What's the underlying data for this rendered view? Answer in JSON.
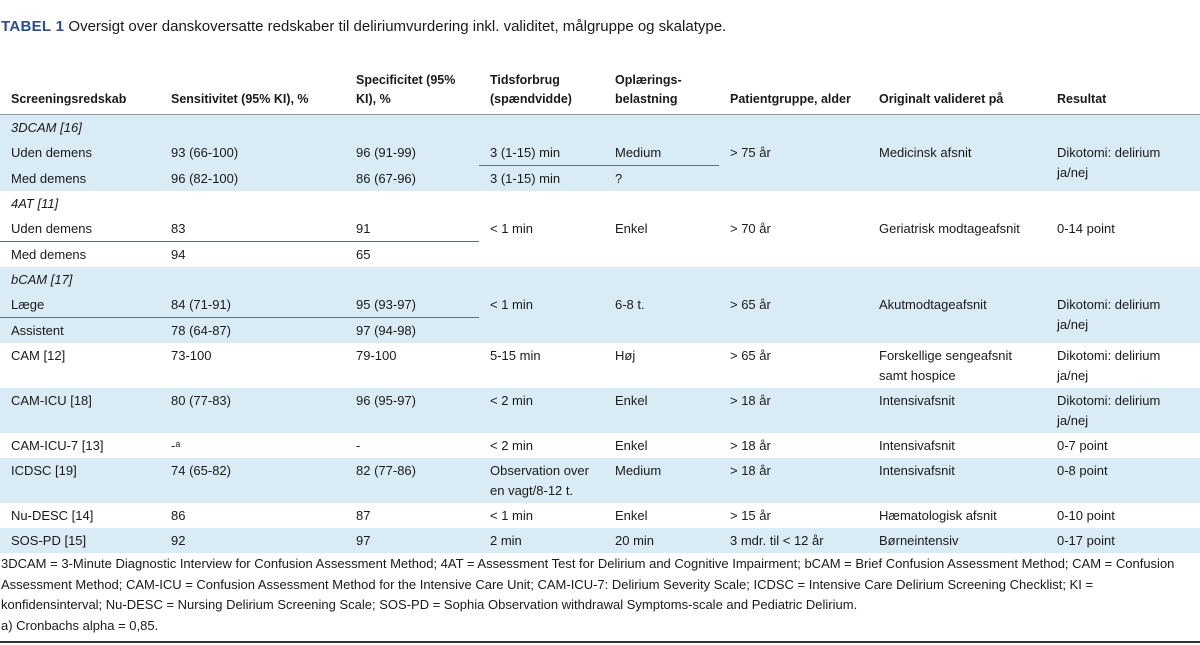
{
  "title": {
    "label": "TABEL 1",
    "text": "Oversigt over danskoversatte redskaber til deliriumvurdering inkl. validitet, målgruppe og skalatype."
  },
  "headers": [
    "Screeningsredskab",
    "Sensitivitet (95% KI), %",
    "Specificitet (95% KI), %",
    "Tidsforbrug (spændvidde)",
    "Oplærings-belastning",
    "Patientgruppe, alder",
    "Originalt valideret på",
    "Resultat"
  ],
  "groups": {
    "g3dcam": {
      "name": "3DCAM [16]",
      "sub": [
        {
          "label": "Uden demens",
          "sens": "93 (66-100)",
          "spec": "96 (91-99)",
          "time": "3 (1-15) min",
          "training": "Medium"
        },
        {
          "label": "Med demens",
          "sens": "96 (82-100)",
          "spec": "86 (67-96)",
          "time": "3 (1-15) min",
          "training": "?"
        }
      ],
      "age": "> 75 år",
      "validated": "Medicinsk afsnit",
      "result": "Dikotomi: delirium ja/nej"
    },
    "g4at": {
      "name": "4AT [11]",
      "sub": [
        {
          "label": "Uden demens",
          "sens": "83",
          "spec": "91"
        },
        {
          "label": "Med demens",
          "sens": "94",
          "spec": "65"
        }
      ],
      "time": "< 1 min",
      "training": "Enkel",
      "age": "> 70 år",
      "validated": "Geriatrisk modtageafsnit",
      "result": "0-14 point"
    },
    "gbcam": {
      "name": "bCAM [17]",
      "sub": [
        {
          "label": "Læge",
          "sens": "84 (71-91)",
          "spec": "95 (93-97)"
        },
        {
          "label": "Assistent",
          "sens": "78 (64-87)",
          "spec": "97 (94-98)"
        }
      ],
      "time": "< 1 min",
      "training": "6-8 t.",
      "age": "> 65 år",
      "validated": "Akutmodtageafsnit",
      "result": "Dikotomi: delirium ja/nej"
    }
  },
  "rows": [
    {
      "tool": "CAM [12]",
      "sens": "73-100",
      "spec": "79-100",
      "time": "5-15 min",
      "training": "Høj",
      "age": "> 65 år",
      "validated": "Forskellige sengeafsnit samt hospice",
      "result": "Dikotomi: delirium ja/nej"
    },
    {
      "tool": "CAM-ICU [18]",
      "sens": "80 (77-83)",
      "spec": "96 (95-97)",
      "time": "< 2 min",
      "training": "Enkel",
      "age": "> 18 år",
      "validated": "Intensivafsnit",
      "result": "Dikotomi: delirium ja/nej"
    },
    {
      "tool": "CAM-ICU-7 [13]",
      "sens": "-ᵃ",
      "spec": "-",
      "time": "< 2 min",
      "training": "Enkel",
      "age": "> 18 år",
      "validated": "Intensivafsnit",
      "result": "0-7 point"
    },
    {
      "tool": "ICDSC [19]",
      "sens": "74 (65-82)",
      "spec": "82 (77-86)",
      "time": "Observation over en vagt/8-12 t.",
      "training": "Medium",
      "age": "> 18 år",
      "validated": "Intensivafsnit",
      "result": "0-8 point"
    },
    {
      "tool": "Nu-DESC [14]",
      "sens": "86",
      "spec": "87",
      "time": "< 1 min",
      "training": "Enkel",
      "age": "> 15 år",
      "validated": "Hæmatologisk afsnit",
      "result": "0-10 point"
    },
    {
      "tool": "SOS-PD [15]",
      "sens": "92",
      "spec": "97",
      "time": "2 min",
      "training": "20 min",
      "age": "3 mdr. til < 12 år",
      "validated": "Børneintensiv",
      "result": "0-17 point"
    }
  ],
  "footnotes": {
    "abbreviations": "3DCAM = 3-Minute Diagnostic Interview for Confusion Assessment Method; 4AT = Assessment Test for Delirium and Cognitive Impairment; bCAM = Brief Confusion Assessment Method; CAM = Confusion Assessment Method; CAM-ICU = Confusion Assessment Method for the Intensive Care Unit; CAM-ICU-7: Delirium Severity Scale; ICDSC = Intensive Care Delirium Screening Checklist; KI = konfidensinterval; Nu-DESC = Nursing Delirium Screening Scale; SOS-PD = Sophia Observation withdrawal Symptoms-scale and Pediatric Delirium.",
    "note_a": "a) Cronbachs alpha = 0,85."
  },
  "colors": {
    "row_tint": "#d9ebf5",
    "title_label": "#2a4f8c"
  }
}
